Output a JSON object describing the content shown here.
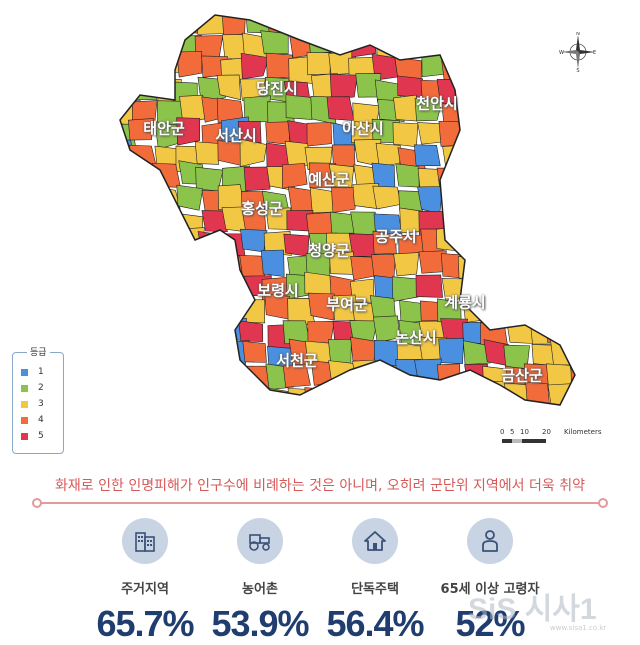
{
  "legend": {
    "title": "등급",
    "items": [
      {
        "label": "1",
        "color": "#4a8fe0"
      },
      {
        "label": "2",
        "color": "#8cc34a"
      },
      {
        "label": "3",
        "color": "#f2c744"
      },
      {
        "label": "4",
        "color": "#f26b3a"
      },
      {
        "label": "5",
        "color": "#e0364f"
      }
    ]
  },
  "regions": [
    {
      "name": "당진시"
    },
    {
      "name": "천안시"
    },
    {
      "name": "태안군"
    },
    {
      "name": "서산시"
    },
    {
      "name": "아산시"
    },
    {
      "name": "예산군"
    },
    {
      "name": "홍성군"
    },
    {
      "name": "공주시"
    },
    {
      "name": "청양군"
    },
    {
      "name": "보령시"
    },
    {
      "name": "부여군"
    },
    {
      "name": "계룡시"
    },
    {
      "name": "논산시"
    },
    {
      "name": "서천군"
    },
    {
      "name": "금산군"
    }
  ],
  "scale": {
    "ticks": [
      "0",
      "5",
      "10",
      "20"
    ],
    "unit": "Kilometers"
  },
  "compass": {
    "n": "N",
    "s": "S",
    "e": "E",
    "w": "W",
    "icon": "compass-rose-icon"
  },
  "headline": "화재로 인한 인명피해가 인구수에 비례하는 것은 아니며, 오히려 군단위 지역에서 더욱 취약",
  "stats": [
    {
      "label": "주거지역",
      "value": "65.7%",
      "icon": "apartment-icon"
    },
    {
      "label": "농어촌",
      "value": "53.9%",
      "icon": "tractor-icon"
    },
    {
      "label": "단독주택",
      "value": "56.4%",
      "icon": "house-icon"
    },
    {
      "label": "65세 이상 고령자",
      "value": "52%",
      "icon": "elderly-person-icon"
    }
  ],
  "watermark": {
    "text": "SiS 시사1",
    "url": "www.sisa1.co.kr"
  }
}
